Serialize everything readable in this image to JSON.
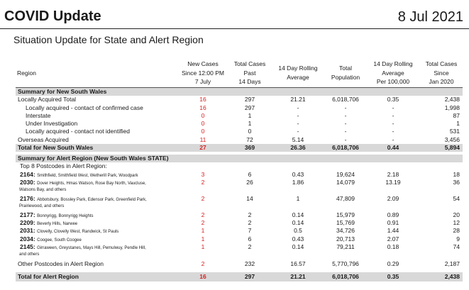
{
  "header": {
    "title": "COVID Update",
    "date": "8 Jul 2021",
    "subtitle": "Situation Update for State and Alert Region"
  },
  "columns": {
    "region": "Region",
    "new_cases": [
      "New Cases",
      "Since 12:00 PM",
      "7 July"
    ],
    "past14": [
      "Total Cases",
      "Past",
      "14 Days"
    ],
    "rolling": [
      "14 Day Rolling",
      "Average"
    ],
    "population": [
      "Total",
      "Population"
    ],
    "rate": [
      "14 Day Rolling",
      "Average",
      "Per 100,000"
    ],
    "since": [
      "Total Cases",
      "Since",
      "Jan 2020"
    ]
  },
  "nsw": {
    "section_title": "Summary for New South Wales",
    "rows": [
      {
        "label": "Locally Acquired Total",
        "new": "16",
        "past": "297",
        "roll": "21.21",
        "pop": "6,018,706",
        "rate": "0.35",
        "since": "2,438"
      },
      {
        "label": "Locally acquired - contact of confirmed case",
        "new": "16",
        "past": "297",
        "roll": "-",
        "pop": "-",
        "rate": "-",
        "since": "1,998"
      },
      {
        "label": "Interstate",
        "new": "0",
        "past": "1",
        "roll": "-",
        "pop": "-",
        "rate": "-",
        "since": "87"
      },
      {
        "label": "Under Investigation",
        "new": "0",
        "past": "1",
        "roll": "-",
        "pop": "-",
        "rate": "-",
        "since": "1"
      },
      {
        "label": "Locally acquired - contact not identified",
        "new": "0",
        "past": "0",
        "roll": "-",
        "pop": "-",
        "rate": "-",
        "since": "531"
      },
      {
        "label": "Overseas Acquired",
        "new": "11",
        "past": "72",
        "roll": "5.14",
        "pop": "-",
        "rate": "-",
        "since": "3,456"
      }
    ],
    "total": {
      "label": "Total for New South Wales",
      "new": "27",
      "past": "369",
      "roll": "26.36",
      "pop": "6,018,706",
      "rate": "0.44",
      "since": "5,894"
    }
  },
  "alert": {
    "section_title": "Summary for Alert Region (New South Wales STATE)",
    "top8_label": "Top 8 Postcodes in Alert Region:",
    "postcodes": [
      {
        "code": "2164:",
        "suburbs": "Smithfield, Smithfield West, Wetherill Park, Woodpark",
        "suburbs2": "",
        "new": "3",
        "past": "6",
        "roll": "0.43",
        "pop": "19,624",
        "rate": "2.18",
        "since": "18"
      },
      {
        "code": "2030:",
        "suburbs": "Dover Heights, Hmas Watson, Rose Bay North, Vaucluse,",
        "suburbs2": "Watsons Bay, and others",
        "new": "2",
        "past": "26",
        "roll": "1.86",
        "pop": "14,079",
        "rate": "13.19",
        "since": "36"
      },
      {
        "code": "2176:",
        "suburbs": "Abbotsbury, Bossley Park, Edensor Park, Greenfield Park,",
        "suburbs2": "Prairiewood, and others",
        "new": "2",
        "past": "14",
        "roll": "1",
        "pop": "47,809",
        "rate": "2.09",
        "since": "54"
      },
      {
        "code": "2177:",
        "suburbs": "Bonnyrigg, Bonnyrigg Heights",
        "suburbs2": "",
        "new": "2",
        "past": "2",
        "roll": "0.14",
        "pop": "15,979",
        "rate": "0.89",
        "since": "20"
      },
      {
        "code": "2209:",
        "suburbs": "Beverly Hills, Narwee",
        "suburbs2": "",
        "new": "2",
        "past": "2",
        "roll": "0.14",
        "pop": "15,769",
        "rate": "0.91",
        "since": "12"
      },
      {
        "code": "2031:",
        "suburbs": "Clovelly, Clovelly West, Randwick, St Pauls",
        "suburbs2": "",
        "new": "1",
        "past": "7",
        "roll": "0.5",
        "pop": "34,726",
        "rate": "1.44",
        "since": "28"
      },
      {
        "code": "2034:",
        "suburbs": "Coogee, South Coogee",
        "suburbs2": "",
        "new": "1",
        "past": "6",
        "roll": "0.43",
        "pop": "20,713",
        "rate": "2.07",
        "since": "9"
      },
      {
        "code": "2145:",
        "suburbs": "Girraween, Greystanes, Mays Hill, Pemulwuy, Pendle Hill,",
        "suburbs2": "and others",
        "new": "1",
        "past": "2",
        "roll": "0.14",
        "pop": "79,211",
        "rate": "0.18",
        "since": "74"
      }
    ],
    "other": {
      "label": "Other Postcodes in Alert Region",
      "new": "2",
      "past": "232",
      "roll": "16.57",
      "pop": "5,770,796",
      "rate": "0.29",
      "since": "2,187"
    },
    "total": {
      "label": "Total for Alert Region",
      "new": "16",
      "past": "297",
      "roll": "21.21",
      "pop": "6,018,706",
      "rate": "0.35",
      "since": "2,438"
    }
  }
}
